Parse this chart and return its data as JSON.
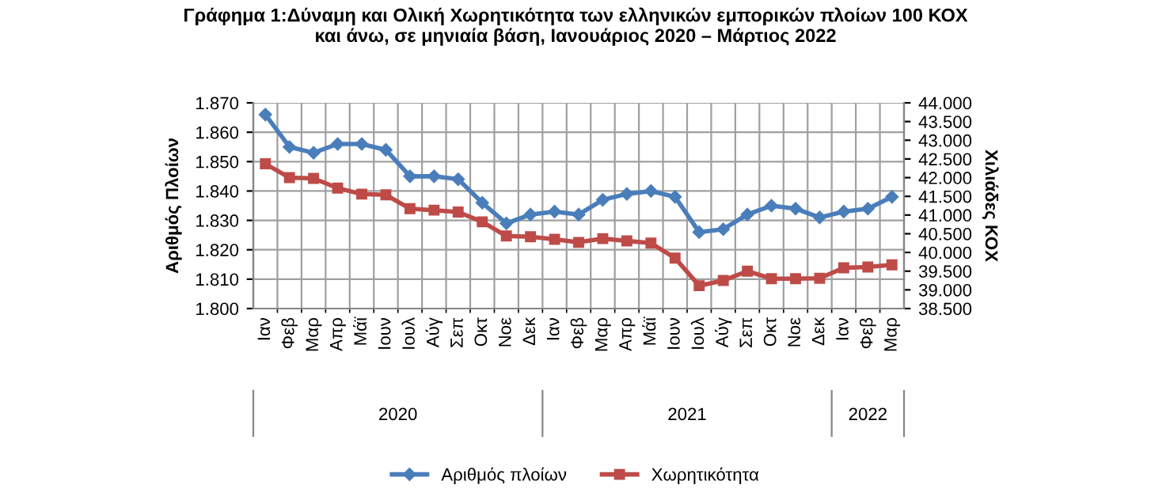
{
  "chart_data": {
    "type": "line",
    "title": "Γράφημα 1:Δύναμη και Ολική Χωρητικότητα των ελληνικών εμπορικών πλοίων 100 ΚΟΧ\nκαι άνω, σε μηνιαία βάση, Ιανουάριος 2020 – Μάρτιος 2022",
    "ylabel": "Αριθμός Πλοίων",
    "y2label": "Χιλιάδες ΚΟΧ",
    "categories": [
      "Ιαν",
      "Φεβ",
      "Μαρ",
      "Απρ",
      "Μάϊ",
      "Ιουν",
      "Ιουλ",
      "Αύγ",
      "Σεπ",
      "Οκτ",
      "Νοε",
      "Δεκ",
      "Ιαν",
      "Φεβ",
      "Μαρ",
      "Απρ",
      "Μάϊ",
      "Ιουν",
      "Ιουλ",
      "Αύγ",
      "Σεπ",
      "Οκτ",
      "Νοε",
      "Δεκ",
      "Ιαν",
      "Φεβ",
      "Μαρ"
    ],
    "annotations": [
      "2020",
      "2021",
      "2022"
    ],
    "series": [
      {
        "name": "Αριθμός πλοίων",
        "color": "#4a7ebb",
        "marker": "diamond",
        "values": [
          1866,
          1855,
          1853,
          1856,
          1856,
          1854,
          1845,
          1845,
          1844,
          1836,
          1829,
          1832,
          1833,
          1832,
          1837,
          1839,
          1840,
          1838,
          1826,
          1827,
          1832,
          1835,
          1834,
          1831,
          1833,
          1834,
          1838
        ]
      },
      {
        "name": "Χωρητικότητα",
        "color": "#be4b48",
        "marker": "square",
        "axis": "y2",
        "values": [
          42370,
          42000,
          41980,
          41720,
          41560,
          41540,
          41170,
          41130,
          41080,
          40820,
          40440,
          40420,
          40350,
          40270,
          40370,
          40310,
          40250,
          39850,
          39110,
          39250,
          39500,
          39300,
          39300,
          39310,
          39590,
          39610,
          39670
        ]
      }
    ],
    "ylim": [
      1800,
      1870
    ],
    "yticks": [
      {
        "value": 1800,
        "label": "1.800"
      },
      {
        "value": 1810,
        "label": "1.810"
      },
      {
        "value": 1820,
        "label": "1.820"
      },
      {
        "value": 1830,
        "label": "1.830"
      },
      {
        "value": 1840,
        "label": "1.840"
      },
      {
        "value": 1850,
        "label": "1.850"
      },
      {
        "value": 1860,
        "label": "1.860"
      },
      {
        "value": 1870,
        "label": "1.870"
      }
    ],
    "y2lim": [
      38500,
      44000
    ],
    "y2ticks": [
      {
        "value": 38500,
        "label": "38.500"
      },
      {
        "value": 39000,
        "label": "39.000"
      },
      {
        "value": 39500,
        "label": "39.500"
      },
      {
        "value": 40000,
        "label": "40.000"
      },
      {
        "value": 40500,
        "label": "40.500"
      },
      {
        "value": 41000,
        "label": "41.000"
      },
      {
        "value": 41500,
        "label": "41.500"
      },
      {
        "value": 42000,
        "label": "42.000"
      },
      {
        "value": 42500,
        "label": "42.500"
      },
      {
        "value": 43000,
        "label": "43.000"
      },
      {
        "value": 43500,
        "label": "43.500"
      },
      {
        "value": 44000,
        "label": "44.000"
      }
    ],
    "grid": true,
    "legend": "bottom"
  }
}
